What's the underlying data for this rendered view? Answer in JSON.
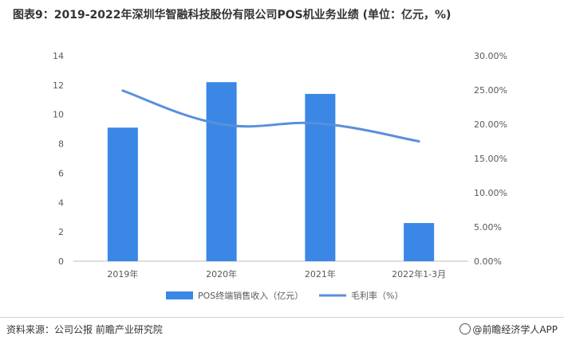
{
  "title": "图表9：2019-2022年深圳华智融科技股份有限公司POS机业务业绩 (单位：亿元，%)",
  "footer": {
    "source": "资料来源：公司公报 前瞻产业研究院",
    "brand": "@前瞻经济学人APP"
  },
  "colors": {
    "bar": "#3a87e6",
    "line": "#5a8fdb",
    "axis": "#bfbfbf",
    "text": "#595959"
  },
  "icons": {
    "brand": "qianzhan-logo-icon"
  },
  "chart_data": {
    "type": "bar",
    "categories": [
      "2019年",
      "2020年",
      "2021年",
      "2022年1-3月"
    ],
    "series": [
      {
        "name": "POS终端销售收入（亿元）",
        "type": "bar",
        "axis": "left",
        "values": [
          9.1,
          12.2,
          11.4,
          2.6
        ]
      },
      {
        "name": "毛利率（%）",
        "type": "line",
        "axis": "right",
        "values": [
          24.9,
          20.0,
          20.1,
          17.5
        ]
      }
    ],
    "y_left": {
      "min": 0,
      "max": 14,
      "ticks": [
        "0",
        "2",
        "4",
        "6",
        "8",
        "10",
        "12",
        "14"
      ]
    },
    "y_right": {
      "min": 0,
      "max": 30,
      "ticks": [
        "0.00%",
        "5.00%",
        "10.00%",
        "15.00%",
        "20.00%",
        "25.00%",
        "30.00%"
      ]
    },
    "grid": false,
    "legend": "bottom-center"
  }
}
